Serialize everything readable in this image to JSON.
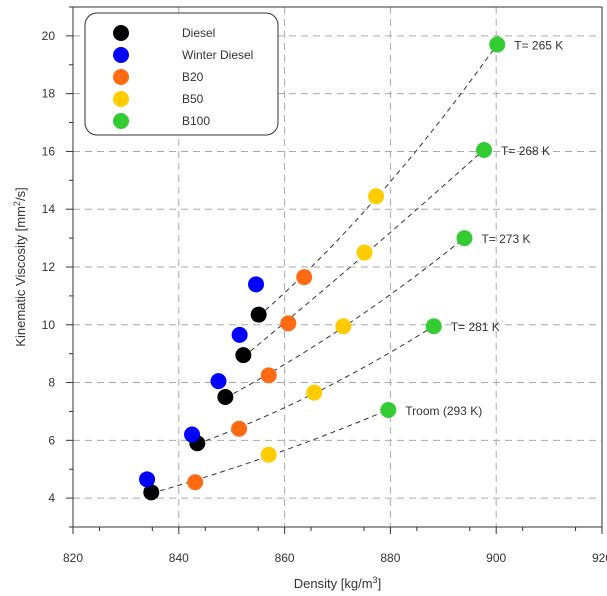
{
  "chart_data": {
    "type": "scatter",
    "title": "",
    "xlabel": "Density [kg/m",
    "xlabel_sup": "3",
    "xlabel_end": "]",
    "ylabel": "Kinematic Viscosity [mm",
    "ylabel_sup": "2",
    "ylabel_end": "/s]",
    "xlim": [
      820,
      920
    ],
    "ylim": [
      3,
      21
    ],
    "xticks": [
      820,
      840,
      860,
      880,
      900,
      920
    ],
    "yticks": [
      4,
      6,
      8,
      10,
      12,
      14,
      16,
      18,
      20
    ],
    "grid": true,
    "legend_position": "top-left",
    "series": [
      {
        "name": "Diesel",
        "color": "#000000",
        "points": [
          [
            834.8,
            4.2
          ],
          [
            843.5,
            5.9
          ],
          [
            848.8,
            7.5
          ],
          [
            852.2,
            8.95
          ],
          [
            855.1,
            10.35
          ]
        ]
      },
      {
        "name": "Winter Diesel",
        "color": "#0000ff",
        "points": [
          [
            834.0,
            4.65
          ],
          [
            842.5,
            6.2
          ],
          [
            847.5,
            8.05
          ],
          [
            851.5,
            9.65
          ],
          [
            854.6,
            11.4
          ]
        ]
      },
      {
        "name": "B20",
        "color": "#ff6a13",
        "points": [
          [
            843.1,
            4.55
          ],
          [
            851.4,
            6.4
          ],
          [
            857.0,
            8.25
          ],
          [
            860.7,
            10.05
          ],
          [
            863.7,
            11.65
          ]
        ]
      },
      {
        "name": "B50",
        "color": "#ffcc00",
        "points": [
          [
            857.0,
            5.5
          ],
          [
            865.6,
            7.65
          ],
          [
            871.1,
            9.95
          ],
          [
            875.1,
            12.5
          ],
          [
            877.3,
            14.45
          ]
        ]
      },
      {
        "name": "B100",
        "color": "#33cc33",
        "points": [
          [
            879.6,
            7.05
          ],
          [
            888.2,
            9.95
          ],
          [
            894.0,
            13.0
          ],
          [
            897.7,
            16.05
          ],
          [
            900.2,
            19.7
          ]
        ]
      }
    ],
    "isotherms": [
      {
        "label": "Troom (293 K)",
        "points": [
          [
            834.8,
            4.2
          ],
          [
            843.1,
            4.55
          ],
          [
            857.0,
            5.5
          ],
          [
            879.6,
            7.05
          ]
        ]
      },
      {
        "label": "T= 281 K",
        "points": [
          [
            843.5,
            5.9
          ],
          [
            851.4,
            6.4
          ],
          [
            865.6,
            7.65
          ],
          [
            888.2,
            9.95
          ]
        ]
      },
      {
        "label": "T= 273 K",
        "points": [
          [
            848.8,
            7.5
          ],
          [
            857.0,
            8.25
          ],
          [
            871.1,
            9.95
          ],
          [
            894.0,
            13.0
          ]
        ]
      },
      {
        "label": "T= 268 K",
        "points": [
          [
            852.2,
            8.95
          ],
          [
            860.7,
            10.05
          ],
          [
            875.1,
            12.5
          ],
          [
            897.7,
            16.05
          ]
        ]
      },
      {
        "label": "T= 265 K",
        "points": [
          [
            855.1,
            10.35
          ],
          [
            863.7,
            11.65
          ],
          [
            877.3,
            14.45
          ],
          [
            900.2,
            19.7
          ]
        ]
      }
    ]
  }
}
